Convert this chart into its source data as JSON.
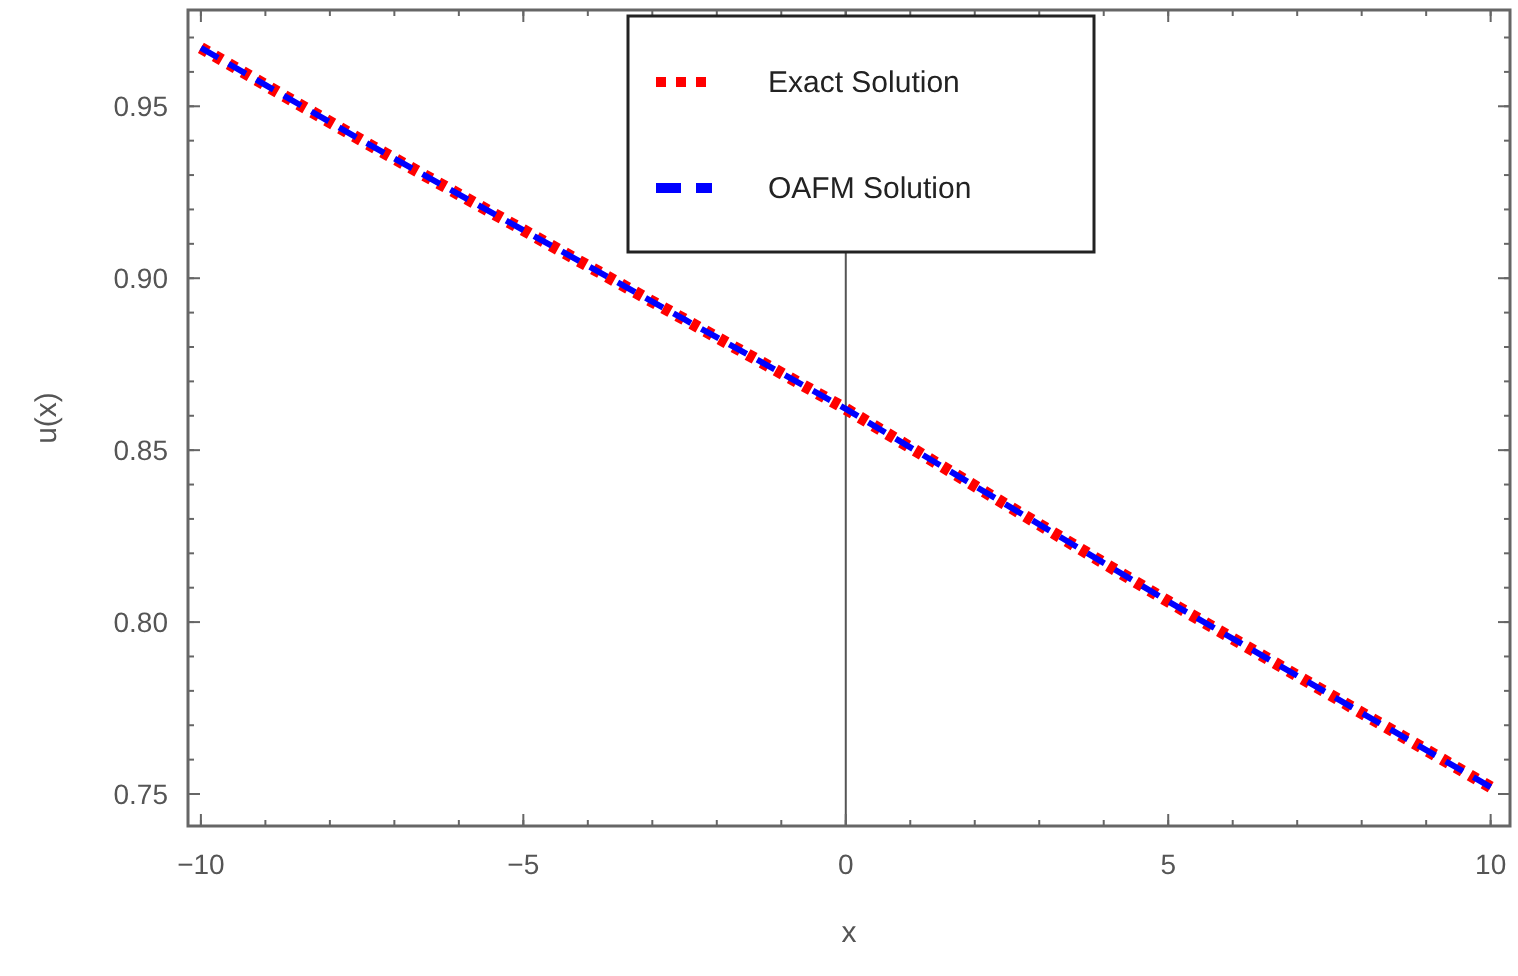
{
  "chart_data": {
    "type": "line",
    "xlabel": "x",
    "ylabel": "u(x)",
    "x": [
      -10,
      -7.5,
      -5,
      -2.5,
      0,
      2.5,
      5,
      7.5,
      10
    ],
    "series": [
      {
        "name": "Exact Solution",
        "color": "#ff0000",
        "line_style": "dotted",
        "values": [
          0.967,
          0.94,
          0.914,
          0.888,
          0.862,
          0.834,
          0.806,
          0.779,
          0.752
        ]
      },
      {
        "name": "OAFM Solution",
        "color": "#0000ff",
        "line_style": "dashed",
        "values": [
          0.967,
          0.94,
          0.914,
          0.888,
          0.862,
          0.834,
          0.806,
          0.779,
          0.752
        ]
      }
    ],
    "xlim": [
      -10.2,
      10.3
    ],
    "ylim": [
      0.7407,
      0.978
    ],
    "xticks": [
      {
        "value": -10,
        "label": "−10"
      },
      {
        "value": -5,
        "label": "−5"
      },
      0,
      5,
      10
    ],
    "yticks": [
      {
        "value": 0.75,
        "label": "0.75"
      },
      {
        "value": 0.8,
        "label": "0.80"
      },
      {
        "value": 0.85,
        "label": "0.85"
      },
      {
        "value": 0.9,
        "label": "0.90"
      },
      {
        "value": 0.95,
        "label": "0.95"
      }
    ],
    "ref_lines": [
      {
        "axis": "x",
        "value": 0,
        "color": "#555555"
      }
    ],
    "grid": false,
    "legend": "top"
  }
}
